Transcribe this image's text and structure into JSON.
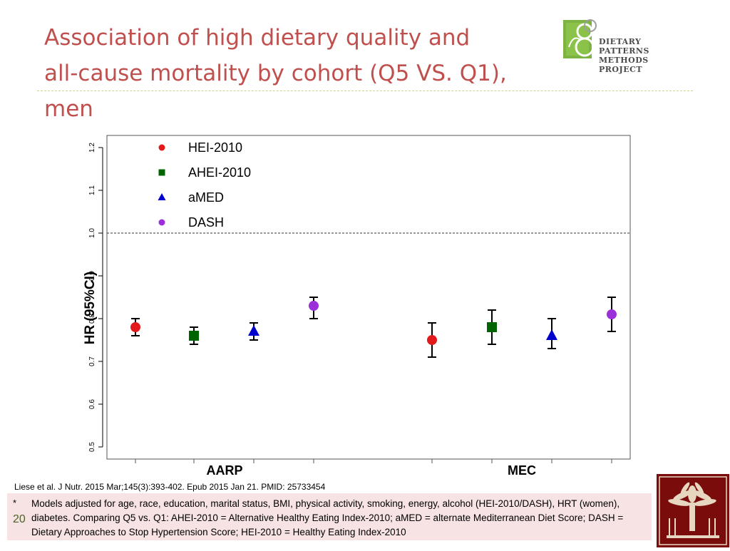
{
  "slide": {
    "title_line1": "Association of high dietary quality and",
    "title_line2": "all-cause mortality by cohort (Q5 VS. Q1), men",
    "title_color": "#c0504d",
    "slide_number": "20"
  },
  "logo": {
    "line1": "DIETARY PATTERNS",
    "line2": "METHODS PROJECT",
    "icon": "leaf-figure-eight-logo"
  },
  "citation": "Liese et al. J Nutr. 2015 Mar;145(3):393-402. Epub 2015 Jan 21. PMID:  25733454",
  "footnote": {
    "marker": "*",
    "text": "Models adjusted for age, race, education, marital status, BMI, physical activity, smoking, energy, alcohol (HEI-2010/DASH), HRT (women), diabetes. Comparing Q5 vs. Q1: AHEI-2010 = Alternative Healthy Eating Index-2010; aMED = alternate Mediterranean Diet Score; DASH = Dietary Approaches to Stop Hypertension Score; HEI-2010 = Healthy Eating Index-2010"
  },
  "seal": {
    "icon": "palmetto-tree-seal",
    "color": "#7a0c0c"
  },
  "chart_data": {
    "type": "scatter",
    "ylabel": "HR (95%CI)",
    "ylim": [
      0.5,
      1.2
    ],
    "yticks": [
      "0.5",
      "0.6",
      "0.7",
      "0.8",
      "0.9",
      "1.0",
      "1.1",
      "1.2"
    ],
    "reference_line": 1.0,
    "groups": [
      "AARP",
      "MEC"
    ],
    "legend_position": "top-left",
    "series": [
      {
        "name": "HEI-2010",
        "color": "#e31a1c",
        "marker": "circle",
        "points": [
          {
            "group": "AARP",
            "hr": 0.78,
            "lo": 0.76,
            "hi": 0.8
          },
          {
            "group": "MEC",
            "hr": 0.75,
            "lo": 0.71,
            "hi": 0.79
          }
        ]
      },
      {
        "name": "AHEI-2010",
        "color": "#006400",
        "marker": "square",
        "points": [
          {
            "group": "AARP",
            "hr": 0.76,
            "lo": 0.74,
            "hi": 0.78
          },
          {
            "group": "MEC",
            "hr": 0.78,
            "lo": 0.74,
            "hi": 0.82
          }
        ]
      },
      {
        "name": "aMED",
        "color": "#0000cd",
        "marker": "triangle",
        "points": [
          {
            "group": "AARP",
            "hr": 0.77,
            "lo": 0.75,
            "hi": 0.79
          },
          {
            "group": "MEC",
            "hr": 0.76,
            "lo": 0.73,
            "hi": 0.8
          }
        ]
      },
      {
        "name": "DASH",
        "color": "#9b30d9",
        "marker": "circle",
        "points": [
          {
            "group": "AARP",
            "hr": 0.83,
            "lo": 0.8,
            "hi": 0.85
          },
          {
            "group": "MEC",
            "hr": 0.81,
            "lo": 0.77,
            "hi": 0.85
          }
        ]
      }
    ]
  }
}
